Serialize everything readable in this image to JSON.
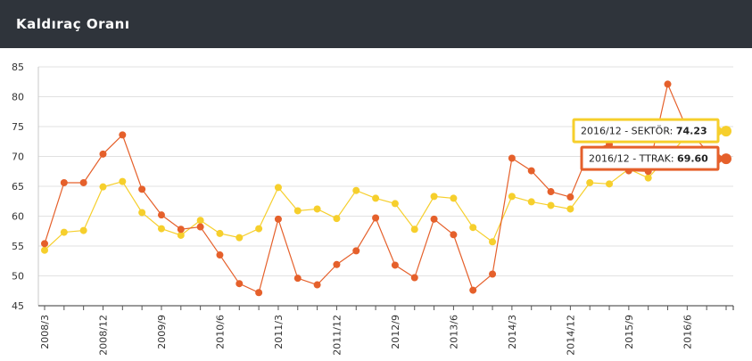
{
  "header": {
    "title": "Kaldıraç Oranı"
  },
  "colors": {
    "header_bg": "#2f343b",
    "ttrak": "#e5602b",
    "sektor": "#f6cf2c",
    "grid": "#e1e1e1"
  },
  "chart_data": {
    "type": "line",
    "title": "Kaldıraç Oranı",
    "xlabel": "",
    "ylabel": "",
    "ylim": [
      45,
      85
    ],
    "yticks": [
      45,
      50,
      55,
      60,
      65,
      70,
      75,
      80,
      85
    ],
    "grid": true,
    "x": [
      "2008/3",
      "2008/6",
      "2008/9",
      "2008/12",
      "2009/3",
      "2009/6",
      "2009/9",
      "2009/12",
      "2010/3",
      "2010/6",
      "2010/9",
      "2010/12",
      "2011/3",
      "2011/6",
      "2011/9",
      "2011/12",
      "2012/3",
      "2012/6",
      "2012/9",
      "2012/12",
      "2013/3",
      "2013/6",
      "2013/9",
      "2013/12",
      "2014/3",
      "2014/6",
      "2014/9",
      "2014/12",
      "2015/3",
      "2015/6",
      "2015/9",
      "2015/12",
      "2016/3",
      "2016/6",
      "2016/9",
      "2016/12"
    ],
    "xtick_labels": [
      "2008/3",
      "2008/12",
      "2009/9",
      "2010/6",
      "2011/3",
      "2011/12",
      "2012/9",
      "2013/6",
      "2014/3",
      "2014/12",
      "2015/9",
      "2016/6"
    ],
    "series": [
      {
        "name": "SEKTÖR",
        "color": "#f6cf2c",
        "values": [
          54.3,
          57.3,
          57.6,
          64.9,
          65.8,
          60.6,
          57.9,
          56.8,
          59.3,
          57.1,
          56.4,
          57.9,
          64.8,
          60.9,
          61.2,
          59.6,
          64.3,
          63.0,
          62.1,
          57.8,
          63.3,
          63.0,
          58.1,
          55.7,
          63.3,
          62.4,
          61.8,
          61.2,
          65.6,
          65.4,
          67.9,
          66.4,
          70.0,
          73.5,
          73.9,
          74.23
        ]
      },
      {
        "name": "TTRAK",
        "color": "#e5602b",
        "values": [
          55.4,
          65.6,
          65.6,
          70.4,
          73.6,
          64.5,
          60.2,
          57.8,
          58.2,
          53.5,
          48.7,
          47.2,
          59.5,
          49.6,
          48.5,
          51.9,
          54.2,
          59.7,
          51.8,
          49.7,
          59.5,
          56.9,
          47.6,
          50.3,
          69.7,
          67.6,
          64.1,
          63.2,
          71.0,
          72.0,
          67.6,
          67.5,
          82.1,
          74.5,
          71.0,
          69.6
        ]
      }
    ],
    "tooltips": [
      {
        "label": "2016/12 - SEKTÖR: ",
        "value": "74.23"
      },
      {
        "label": "2016/12 - TTRAK: ",
        "value": "69.60"
      }
    ]
  }
}
